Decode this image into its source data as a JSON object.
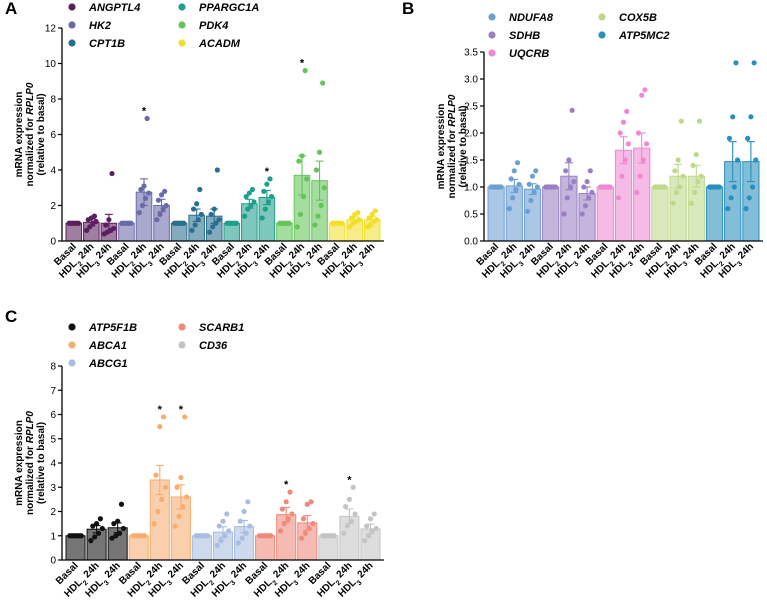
{
  "chart_data": [
    {
      "panel": "A",
      "type": "bar",
      "ylabel_lines": [
        "mRNA expression",
        "normalized for RPLP0",
        "(relative to basal)"
      ],
      "ylim": [
        0,
        12
      ],
      "yticks": [
        0,
        2,
        4,
        6,
        8,
        10,
        12
      ],
      "categories": [
        "Basal",
        "HDL2 24h",
        "HDL3 24h"
      ],
      "series": [
        {
          "name": "ANGPTL4",
          "color": "#5b1f5e",
          "values": [
            1.0,
            1.05,
            1.0
          ],
          "errors": [
            0,
            0.2,
            0.5
          ],
          "points": [
            [
              1,
              1,
              1,
              1,
              1,
              1,
              1
            ],
            [
              0.6,
              0.8,
              1.0,
              1.1,
              1.2,
              1.3,
              1.4
            ],
            [
              0.4,
              0.5,
              0.6,
              0.7,
              0.9,
              1.2,
              3.8
            ]
          ],
          "sig": [
            false,
            false,
            false
          ]
        },
        {
          "name": "HK2",
          "color": "#6a6aa8",
          "values": [
            1.0,
            2.75,
            2.0
          ],
          "errors": [
            0,
            0.75,
            0.35
          ],
          "points": [
            [
              1,
              1,
              1,
              1,
              1,
              1,
              1
            ],
            [
              1.6,
              2.0,
              2.4,
              2.7,
              2.9,
              3.1,
              6.9
            ],
            [
              1.2,
              1.5,
              1.8,
              2.0,
              2.3,
              2.6,
              2.8
            ]
          ],
          "sig": [
            false,
            true,
            false
          ]
        },
        {
          "name": "CPT1B",
          "color": "#2a6f8f",
          "values": [
            1.0,
            1.45,
            1.4
          ],
          "errors": [
            0,
            0.35,
            0.4
          ],
          "points": [
            [
              1,
              1,
              1,
              1,
              1,
              1,
              1
            ],
            [
              0.6,
              0.9,
              1.2,
              1.5,
              1.8,
              2.1,
              2.9
            ],
            [
              0.5,
              0.8,
              1.0,
              1.2,
              1.5,
              1.8,
              4.0
            ]
          ],
          "sig": [
            false,
            false,
            false
          ]
        },
        {
          "name": "PPARGC1A",
          "color": "#1e9e8c",
          "values": [
            1.0,
            2.1,
            2.45
          ],
          "errors": [
            0,
            0.25,
            0.4
          ],
          "points": [
            [
              1,
              1,
              1,
              1,
              1,
              1,
              1
            ],
            [
              1.4,
              1.8,
              2.0,
              2.2,
              2.5,
              2.7,
              2.9
            ],
            [
              1.3,
              1.8,
              2.2,
              2.5,
              2.8,
              3.2,
              3.5
            ]
          ],
          "sig": [
            false,
            false,
            true
          ]
        },
        {
          "name": "PDK4",
          "color": "#64c45a",
          "values": [
            1.0,
            3.7,
            3.4
          ],
          "errors": [
            0,
            1.1,
            1.1
          ],
          "points": [
            [
              1,
              1,
              1,
              1,
              1,
              1,
              1
            ],
            [
              0.8,
              1.5,
              2.5,
              3.5,
              4.5,
              4.8,
              9.6
            ],
            [
              0.9,
              1.4,
              2.0,
              3.0,
              4.0,
              5.0,
              8.9
            ]
          ],
          "sig": [
            false,
            true,
            false
          ]
        },
        {
          "name": "ACADM",
          "color": "#f2df2c",
          "values": [
            1.0,
            1.2,
            1.2
          ],
          "errors": [
            0,
            0.15,
            0.15
          ],
          "points": [
            [
              1,
              1,
              1,
              1,
              1,
              1,
              1
            ],
            [
              0.8,
              1.0,
              1.1,
              1.2,
              1.3,
              1.5,
              1.6
            ],
            [
              0.8,
              0.9,
              1.1,
              1.2,
              1.3,
              1.5,
              1.7
            ]
          ],
          "sig": [
            false,
            false,
            false
          ]
        }
      ]
    },
    {
      "panel": "B",
      "type": "bar",
      "ylabel_lines": [
        "mRNA expression",
        "normalized for RPLP0",
        "(relative to basal)"
      ],
      "ylim": [
        0,
        3.5
      ],
      "yticks": [
        0.0,
        0.5,
        1.0,
        1.5,
        2.0,
        2.5,
        3.0,
        3.5
      ],
      "categories": [
        "Basal",
        "HDL2 24h",
        "HDL3 24h"
      ],
      "series": [
        {
          "name": "NDUFA8",
          "color": "#6c9fd2",
          "values": [
            1.0,
            1.02,
            0.96
          ],
          "errors": [
            0,
            0.12,
            0.1
          ],
          "points": [
            [
              1,
              1,
              1,
              1,
              1,
              1,
              1
            ],
            [
              0.6,
              0.8,
              0.95,
              1.05,
              1.15,
              1.3,
              1.45
            ],
            [
              0.55,
              0.75,
              0.9,
              1.0,
              1.05,
              1.2,
              1.3
            ]
          ],
          "sig": [
            false,
            false,
            false
          ]
        },
        {
          "name": "SDHB",
          "color": "#9a7fc4",
          "values": [
            1.0,
            1.2,
            0.88
          ],
          "errors": [
            0,
            0.25,
            0.12
          ],
          "points": [
            [
              1,
              1,
              1,
              1,
              1,
              1,
              1
            ],
            [
              0.5,
              0.8,
              1.0,
              1.1,
              1.3,
              1.5,
              2.42
            ],
            [
              0.5,
              0.65,
              0.8,
              0.9,
              1.0,
              1.1,
              1.3
            ]
          ],
          "sig": [
            false,
            false,
            false
          ]
        },
        {
          "name": "UQCRB",
          "color": "#ee88d2",
          "values": [
            1.0,
            1.68,
            1.72
          ],
          "errors": [
            0,
            0.25,
            0.28
          ],
          "points": [
            [
              1,
              1,
              1,
              1,
              1,
              1,
              1
            ],
            [
              0.8,
              1.2,
              1.5,
              1.8,
              2.0,
              2.2,
              2.4
            ],
            [
              0.9,
              1.2,
              1.5,
              1.8,
              2.0,
              2.7,
              2.8
            ]
          ],
          "sig": [
            false,
            false,
            false
          ]
        },
        {
          "name": "COX5B",
          "color": "#bfd98a",
          "values": [
            1.0,
            1.2,
            1.2
          ],
          "errors": [
            0,
            0.22,
            0.2
          ],
          "points": [
            [
              1,
              1,
              1,
              1,
              1,
              1,
              1
            ],
            [
              0.7,
              0.9,
              1.0,
              1.2,
              1.3,
              1.5,
              2.22
            ],
            [
              0.7,
              0.9,
              1.1,
              1.2,
              1.4,
              1.6,
              2.22
            ]
          ],
          "sig": [
            false,
            false,
            false
          ]
        },
        {
          "name": "ATP5MC2",
          "color": "#2a8fbd",
          "values": [
            1.0,
            1.47,
            1.47
          ],
          "errors": [
            0,
            0.37,
            0.37
          ],
          "points": [
            [
              1,
              1,
              1,
              1,
              1,
              1,
              1
            ],
            [
              0.6,
              0.8,
              1.0,
              1.5,
              1.9,
              2.3,
              3.3
            ],
            [
              0.6,
              0.8,
              1.0,
              1.5,
              1.9,
              2.3,
              3.3
            ]
          ],
          "sig": [
            false,
            false,
            false
          ]
        }
      ]
    },
    {
      "panel": "C",
      "type": "bar",
      "ylabel_lines": [
        "mRNA expression",
        "normalized for RPLP0",
        "(relative to basal)"
      ],
      "ylim": [
        0,
        8
      ],
      "yticks": [
        0,
        1,
        2,
        3,
        4,
        5,
        6,
        7,
        8
      ],
      "categories": [
        "Basal",
        "HDL2 24h",
        "HDL3 24h"
      ],
      "series": [
        {
          "name": "ATP5F1B",
          "color": "#111111",
          "values": [
            1.0,
            1.27,
            1.33
          ],
          "errors": [
            0,
            0.15,
            0.2
          ],
          "points": [
            [
              1,
              1,
              1,
              1,
              1,
              1,
              1
            ],
            [
              0.8,
              0.95,
              1.1,
              1.3,
              1.4,
              1.5,
              1.7
            ],
            [
              0.9,
              1.0,
              1.1,
              1.3,
              1.5,
              1.6,
              2.3
            ]
          ],
          "sig": [
            false,
            false,
            false
          ]
        },
        {
          "name": "ABCA1",
          "color": "#f7ad6e",
          "values": [
            1.0,
            3.3,
            2.6
          ],
          "errors": [
            0,
            0.6,
            0.5
          ],
          "points": [
            [
              1,
              1,
              1,
              1,
              1,
              1,
              1
            ],
            [
              1.5,
              2.0,
              2.5,
              3.0,
              3.5,
              5.5,
              5.9
            ],
            [
              1.4,
              1.8,
              2.2,
              2.6,
              3.0,
              3.4,
              5.9
            ]
          ],
          "sig": [
            false,
            true,
            true
          ]
        },
        {
          "name": "ABCG1",
          "color": "#a8bde0",
          "values": [
            1.0,
            1.15,
            1.38
          ],
          "errors": [
            0,
            0.22,
            0.25
          ],
          "points": [
            [
              1,
              1,
              1,
              1,
              1,
              1,
              1
            ],
            [
              0.6,
              0.8,
              1.0,
              1.2,
              1.4,
              1.6,
              1.9
            ],
            [
              0.7,
              0.9,
              1.1,
              1.4,
              1.6,
              2.0,
              2.4
            ]
          ],
          "sig": [
            false,
            false,
            false
          ]
        },
        {
          "name": "SCARB1",
          "color": "#ee8a7a",
          "values": [
            1.0,
            1.87,
            1.53
          ],
          "errors": [
            0,
            0.3,
            0.3
          ],
          "points": [
            [
              1,
              1,
              1,
              1,
              1,
              1,
              1
            ],
            [
              1.2,
              1.5,
              1.7,
              1.9,
              2.1,
              2.4,
              2.8
            ],
            [
              0.9,
              1.1,
              1.3,
              1.5,
              1.7,
              2.3,
              2.4
            ]
          ],
          "sig": [
            false,
            true,
            false
          ]
        },
        {
          "name": "CD36",
          "color": "#c4c4c4",
          "values": [
            1.0,
            1.8,
            1.28
          ],
          "errors": [
            0,
            0.3,
            0.2
          ],
          "points": [
            [
              1,
              1,
              1,
              1,
              1,
              1,
              1
            ],
            [
              1.1,
              1.4,
              1.6,
              1.9,
              2.2,
              2.5,
              3.0
            ],
            [
              0.8,
              1.0,
              1.2,
              1.3,
              1.4,
              1.7,
              1.9
            ]
          ],
          "sig": [
            false,
            true,
            false
          ]
        }
      ]
    }
  ]
}
